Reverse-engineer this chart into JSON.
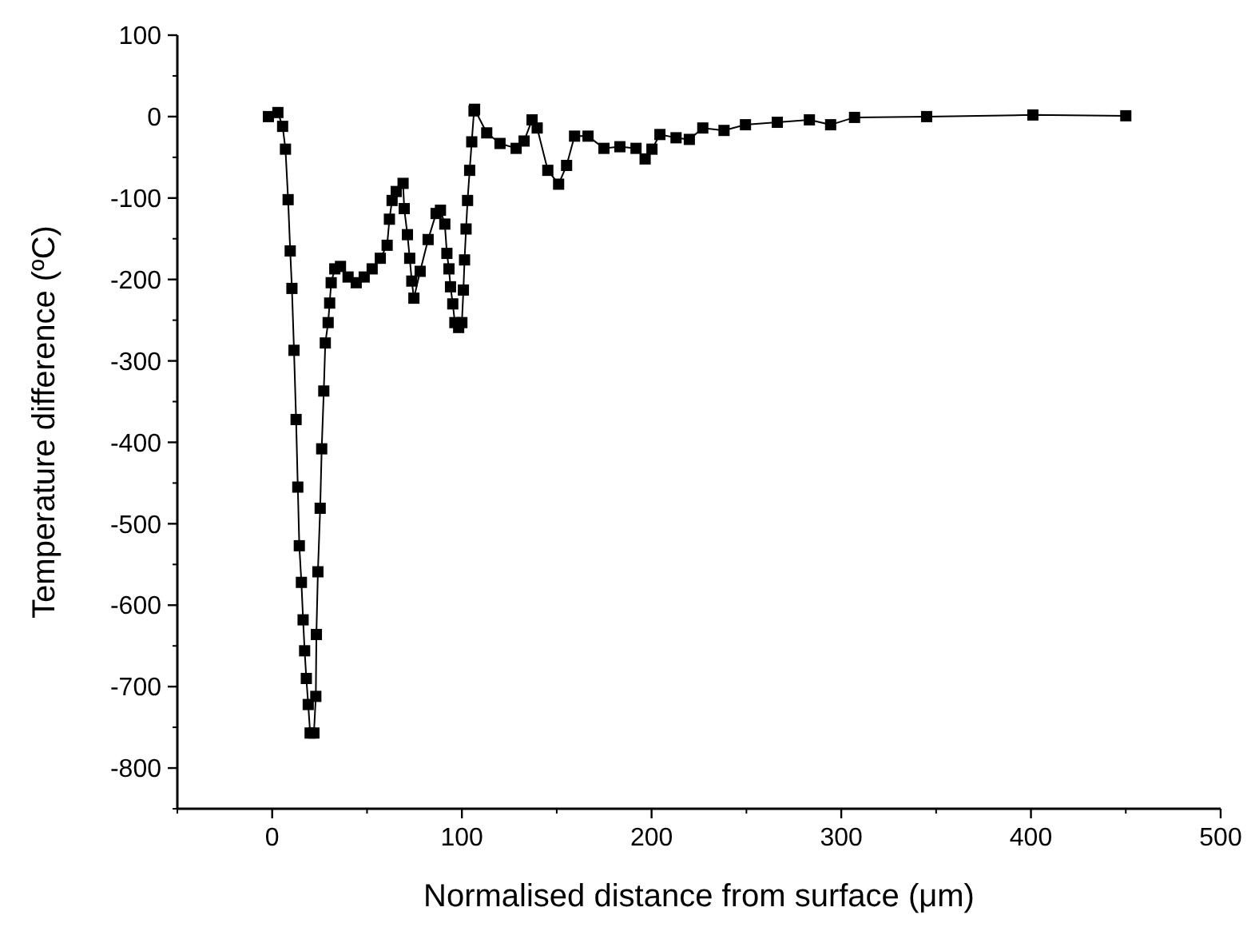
{
  "chart_data": {
    "type": "line",
    "xlabel": "Normalised distance from surface (μm)",
    "ylabel": "Temperature difference (ºC)",
    "xlim": [
      -50,
      500
    ],
    "ylim": [
      -850,
      100
    ],
    "xticks": [
      0,
      100,
      200,
      300,
      400,
      500
    ],
    "yticks": [
      -800,
      -700,
      -600,
      -500,
      -400,
      -300,
      -200,
      -100,
      0,
      100
    ],
    "marker": "square",
    "line_style": "solid",
    "series": [
      {
        "color": "#000000",
        "x": [
          -2,
          3,
          5.5,
          7,
          8.4,
          9.5,
          10.4,
          11.5,
          12.6,
          13.5,
          14.3,
          15.4,
          16.3,
          17.1,
          18,
          19,
          20,
          22,
          23,
          23.3,
          24.1,
          25.3,
          26.1,
          27.2,
          28,
          29.5,
          30.3,
          31.1,
          33,
          36,
          40,
          44.3,
          48.5,
          52.7,
          57,
          60.6,
          61.8,
          63.2,
          65.4,
          69,
          69.6,
          71.3,
          72.5,
          73.6,
          74.7,
          78,
          82.2,
          86.4,
          88.7,
          91,
          92.1,
          93.2,
          94,
          95.2,
          96.3,
          98.3,
          100,
          100.8,
          101.4,
          102.2,
          103,
          104.1,
          105.2,
          106.4,
          106.7,
          113.1,
          120.1,
          128.6,
          132.8,
          137,
          139.7,
          145.3,
          151,
          155.2,
          159.4,
          166.5,
          174.9,
          183.3,
          191.8,
          196.6,
          200.2,
          204.4,
          212.9,
          219.9,
          227,
          238.2,
          249.5,
          266.3,
          283.2,
          294.4,
          307,
          345,
          401,
          450
        ],
        "values": [
          0,
          5,
          -12,
          -40,
          -102,
          -165,
          -211,
          -287,
          -372,
          -455,
          -527,
          -572,
          -618,
          -656,
          -690,
          -722,
          -757,
          -757,
          -712,
          -636,
          -559,
          -481,
          -408,
          -337,
          -278,
          -253,
          -229,
          -204,
          -187,
          -184,
          -197,
          -204,
          -197,
          -187,
          -174,
          -158,
          -126,
          -103,
          -92,
          -82,
          -113,
          -145,
          -174,
          -202,
          -223,
          -190,
          -151,
          -119,
          -115,
          -132,
          -168,
          -187,
          -209,
          -230,
          -253,
          -259,
          -253,
          -213,
          -176,
          -138,
          -103,
          -66,
          -31,
          7,
          9,
          -20,
          -33,
          -39,
          -30,
          -4,
          -14,
          -66,
          -83,
          -60,
          -24,
          -24,
          -39,
          -37,
          -39,
          -52,
          -40,
          -22,
          -26,
          -28,
          -14,
          -17,
          -10,
          -7,
          -4,
          -10,
          -1,
          0,
          2,
          1
        ]
      }
    ]
  }
}
